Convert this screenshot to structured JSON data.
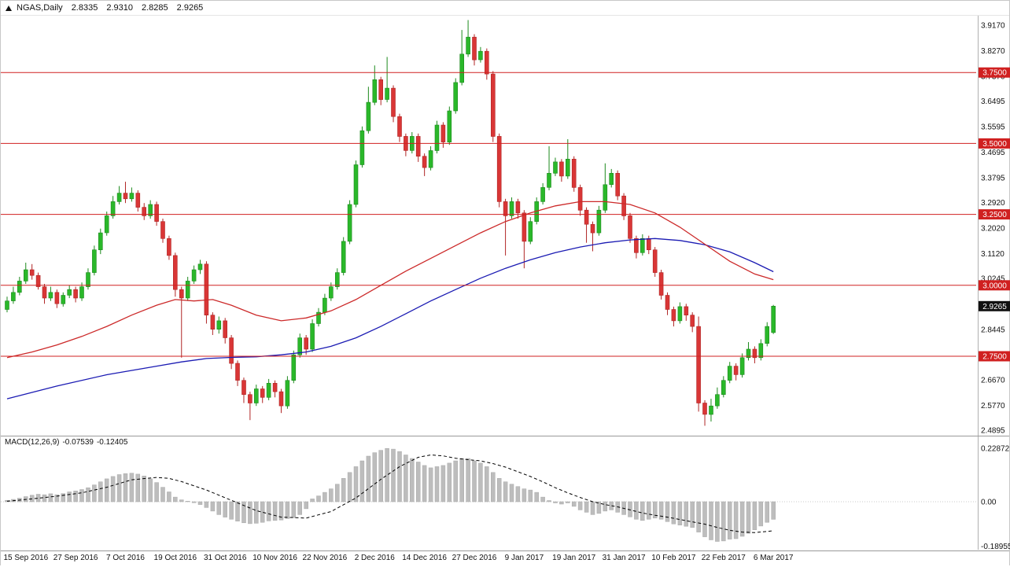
{
  "header": {
    "symbol": "NGAS,Daily",
    "open": "2.8335",
    "high": "2.9310",
    "low": "2.8285",
    "close": "2.9265"
  },
  "macd_panel": {
    "label": "MACD(12,26,9)",
    "macd_value": "-0.07539",
    "signal_value": "-0.12405"
  },
  "colors": {
    "bull": "#2ab82a",
    "bull_border": "#1d8a1d",
    "bear": "#d93636",
    "bear_border": "#b02525",
    "level_line": "#d02020",
    "ma_fast": "#cc2929",
    "ma_slow": "#1b1bb3",
    "histogram": "#bdbdbd",
    "histogram_border": "#a8a8a8",
    "signal": "#000000",
    "badge_current": "#111111"
  },
  "chart_data": {
    "type": "candlestick",
    "title": "NGAS Daily with MACD(12,26,9)",
    "price_axis": {
      "max": 3.917,
      "min": 2.4895,
      "ticks": [
        "3.9170",
        "3.8270",
        "3.7370",
        "3.6495",
        "3.5595",
        "3.4695",
        "3.3795",
        "3.2920",
        "3.2020",
        "3.1120",
        "3.0245",
        "2.9345",
        "2.8445",
        "2.7545",
        "2.6670",
        "2.5770",
        "2.4895"
      ]
    },
    "levels": [
      {
        "value": 3.75,
        "label": "3.7500"
      },
      {
        "value": 3.5,
        "label": "3.5000"
      },
      {
        "value": 3.25,
        "label": "3.2500"
      },
      {
        "value": 3.0,
        "label": "3.0000"
      },
      {
        "value": 2.75,
        "label": "2.7500"
      }
    ],
    "current_price": {
      "value": 2.9265,
      "label": "2.9265"
    },
    "x_labels": [
      {
        "bar": 3,
        "label": "15 Sep 2016"
      },
      {
        "bar": 11,
        "label": "27 Sep 2016"
      },
      {
        "bar": 19,
        "label": "7 Oct 2016"
      },
      {
        "bar": 27,
        "label": "19 Oct 2016"
      },
      {
        "bar": 35,
        "label": "31 Oct 2016"
      },
      {
        "bar": 43,
        "label": "10 Nov 2016"
      },
      {
        "bar": 51,
        "label": "22 Nov 2016"
      },
      {
        "bar": 59,
        "label": "2 Dec 2016"
      },
      {
        "bar": 67,
        "label": "14 Dec 2016"
      },
      {
        "bar": 75,
        "label": "27 Dec 2016"
      },
      {
        "bar": 83,
        "label": "9 Jan 2017"
      },
      {
        "bar": 91,
        "label": "19 Jan 2017"
      },
      {
        "bar": 99,
        "label": "31 Jan 2017"
      },
      {
        "bar": 107,
        "label": "10 Feb 2017"
      },
      {
        "bar": 115,
        "label": "22 Feb 2017"
      },
      {
        "bar": 123,
        "label": "6 Mar 2017"
      }
    ],
    "candles": [
      [
        2.915,
        2.96,
        2.905,
        2.945
      ],
      [
        2.945,
        2.995,
        2.935,
        2.975
      ],
      [
        2.975,
        3.03,
        2.965,
        3.015
      ],
      [
        3.015,
        3.08,
        3.005,
        3.055
      ],
      [
        3.055,
        3.075,
        3.02,
        3.035
      ],
      [
        3.035,
        3.045,
        2.985,
        2.995
      ],
      [
        2.995,
        3.005,
        2.935,
        2.955
      ],
      [
        2.955,
        2.995,
        2.945,
        2.975
      ],
      [
        2.975,
        2.985,
        2.92,
        2.935
      ],
      [
        2.935,
        2.975,
        2.925,
        2.965
      ],
      [
        2.965,
        3.0,
        2.955,
        2.985
      ],
      [
        2.985,
        2.995,
        2.94,
        2.955
      ],
      [
        2.955,
        3.01,
        2.945,
        2.995
      ],
      [
        2.995,
        3.06,
        2.985,
        3.045
      ],
      [
        3.045,
        3.14,
        3.035,
        3.125
      ],
      [
        3.125,
        3.2,
        3.11,
        3.185
      ],
      [
        3.185,
        3.26,
        3.175,
        3.245
      ],
      [
        3.245,
        3.315,
        3.235,
        3.295
      ],
      [
        3.295,
        3.35,
        3.285,
        3.325
      ],
      [
        3.325,
        3.365,
        3.29,
        3.305
      ],
      [
        3.305,
        3.345,
        3.295,
        3.325
      ],
      [
        3.325,
        3.335,
        3.26,
        3.275
      ],
      [
        3.275,
        3.29,
        3.23,
        3.245
      ],
      [
        3.245,
        3.3,
        3.235,
        3.285
      ],
      [
        3.285,
        3.295,
        3.21,
        3.225
      ],
      [
        3.225,
        3.235,
        3.15,
        3.165
      ],
      [
        3.165,
        3.175,
        3.09,
        3.105
      ],
      [
        3.105,
        3.115,
        2.96,
        2.985
      ],
      [
        2.985,
        2.995,
        2.745,
        2.955
      ],
      [
        2.955,
        3.03,
        2.945,
        3.015
      ],
      [
        3.015,
        3.07,
        3.005,
        3.055
      ],
      [
        3.055,
        3.09,
        3.04,
        3.075
      ],
      [
        3.075,
        3.085,
        2.865,
        2.895
      ],
      [
        2.895,
        2.905,
        2.825,
        2.845
      ],
      [
        2.845,
        2.89,
        2.83,
        2.875
      ],
      [
        2.875,
        2.885,
        2.795,
        2.815
      ],
      [
        2.815,
        2.825,
        2.705,
        2.725
      ],
      [
        2.725,
        2.735,
        2.645,
        2.665
      ],
      [
        2.665,
        2.675,
        2.585,
        2.615
      ],
      [
        2.615,
        2.625,
        2.525,
        2.585
      ],
      [
        2.585,
        2.65,
        2.575,
        2.635
      ],
      [
        2.635,
        2.645,
        2.585,
        2.605
      ],
      [
        2.605,
        2.67,
        2.595,
        2.655
      ],
      [
        2.655,
        2.665,
        2.605,
        2.625
      ],
      [
        2.625,
        2.635,
        2.55,
        2.575
      ],
      [
        2.575,
        2.68,
        2.565,
        2.665
      ],
      [
        2.665,
        2.77,
        2.655,
        2.755
      ],
      [
        2.755,
        2.83,
        2.745,
        2.815
      ],
      [
        2.815,
        2.825,
        2.755,
        2.775
      ],
      [
        2.775,
        2.88,
        2.765,
        2.865
      ],
      [
        2.865,
        2.92,
        2.855,
        2.905
      ],
      [
        2.905,
        2.97,
        2.895,
        2.955
      ],
      [
        2.955,
        3.01,
        2.945,
        2.995
      ],
      [
        2.995,
        3.06,
        2.985,
        3.045
      ],
      [
        3.045,
        3.17,
        3.035,
        3.155
      ],
      [
        3.155,
        3.3,
        3.145,
        3.285
      ],
      [
        3.285,
        3.44,
        3.275,
        3.425
      ],
      [
        3.425,
        3.56,
        3.415,
        3.545
      ],
      [
        3.545,
        3.7,
        3.535,
        3.645
      ],
      [
        3.645,
        3.775,
        3.635,
        3.725
      ],
      [
        3.725,
        3.735,
        3.635,
        3.655
      ],
      [
        3.655,
        3.805,
        3.645,
        3.695
      ],
      [
        3.695,
        3.705,
        3.575,
        3.595
      ],
      [
        3.595,
        3.605,
        3.505,
        3.525
      ],
      [
        3.525,
        3.535,
        3.455,
        3.475
      ],
      [
        3.475,
        3.54,
        3.465,
        3.525
      ],
      [
        3.525,
        3.535,
        3.435,
        3.455
      ],
      [
        3.455,
        3.465,
        3.385,
        3.415
      ],
      [
        3.415,
        3.49,
        3.405,
        3.475
      ],
      [
        3.475,
        3.58,
        3.465,
        3.565
      ],
      [
        3.565,
        3.575,
        3.485,
        3.505
      ],
      [
        3.505,
        3.63,
        3.495,
        3.615
      ],
      [
        3.615,
        3.73,
        3.605,
        3.715
      ],
      [
        3.715,
        3.9,
        3.705,
        3.815
      ],
      [
        3.815,
        3.935,
        3.805,
        3.875
      ],
      [
        3.875,
        3.885,
        3.775,
        3.795
      ],
      [
        3.795,
        3.84,
        3.785,
        3.825
      ],
      [
        3.825,
        3.835,
        3.725,
        3.745
      ],
      [
        3.745,
        3.755,
        3.505,
        3.525
      ],
      [
        3.525,
        3.535,
        3.275,
        3.295
      ],
      [
        3.295,
        3.305,
        3.105,
        3.245
      ],
      [
        3.245,
        3.31,
        3.235,
        3.295
      ],
      [
        3.295,
        3.305,
        3.235,
        3.255
      ],
      [
        3.255,
        3.265,
        3.06,
        3.155
      ],
      [
        3.155,
        3.24,
        3.145,
        3.225
      ],
      [
        3.225,
        3.31,
        3.215,
        3.295
      ],
      [
        3.295,
        3.36,
        3.285,
        3.345
      ],
      [
        3.345,
        3.49,
        3.335,
        3.395
      ],
      [
        3.395,
        3.45,
        3.385,
        3.435
      ],
      [
        3.435,
        3.445,
        3.365,
        3.385
      ],
      [
        3.385,
        3.515,
        3.375,
        3.445
      ],
      [
        3.445,
        3.455,
        3.33,
        3.345
      ],
      [
        3.345,
        3.355,
        3.245,
        3.265
      ],
      [
        3.265,
        3.275,
        3.15,
        3.215
      ],
      [
        3.215,
        3.225,
        3.12,
        3.185
      ],
      [
        3.185,
        3.28,
        3.175,
        3.265
      ],
      [
        3.265,
        3.43,
        3.255,
        3.355
      ],
      [
        3.355,
        3.41,
        3.345,
        3.395
      ],
      [
        3.395,
        3.405,
        3.3,
        3.315
      ],
      [
        3.315,
        3.325,
        3.23,
        3.245
      ],
      [
        3.245,
        3.255,
        3.15,
        3.165
      ],
      [
        3.165,
        3.175,
        3.095,
        3.115
      ],
      [
        3.115,
        3.18,
        3.105,
        3.165
      ],
      [
        3.165,
        3.175,
        3.11,
        3.125
      ],
      [
        3.125,
        3.135,
        3.03,
        3.045
      ],
      [
        3.045,
        3.055,
        2.95,
        2.965
      ],
      [
        2.965,
        2.975,
        2.895,
        2.915
      ],
      [
        2.915,
        2.925,
        2.855,
        2.875
      ],
      [
        2.875,
        2.94,
        2.865,
        2.925
      ],
      [
        2.925,
        2.935,
        2.875,
        2.895
      ],
      [
        2.895,
        2.905,
        2.835,
        2.855
      ],
      [
        2.855,
        2.89,
        2.555,
        2.585
      ],
      [
        2.585,
        2.595,
        2.505,
        2.545
      ],
      [
        2.545,
        2.6,
        2.52,
        2.575
      ],
      [
        2.575,
        2.64,
        2.565,
        2.615
      ],
      [
        2.615,
        2.68,
        2.605,
        2.665
      ],
      [
        2.665,
        2.73,
        2.655,
        2.715
      ],
      [
        2.715,
        2.725,
        2.665,
        2.685
      ],
      [
        2.685,
        2.76,
        2.675,
        2.745
      ],
      [
        2.745,
        2.8,
        2.735,
        2.775
      ],
      [
        2.775,
        2.785,
        2.725,
        2.745
      ],
      [
        2.745,
        2.81,
        2.735,
        2.795
      ],
      [
        2.795,
        2.87,
        2.785,
        2.855
      ],
      [
        2.8335,
        2.931,
        2.8285,
        2.9265
      ]
    ],
    "ma_fast_points": [
      [
        0,
        2.745
      ],
      [
        4,
        2.765
      ],
      [
        8,
        2.79
      ],
      [
        12,
        2.82
      ],
      [
        16,
        2.855
      ],
      [
        20,
        2.895
      ],
      [
        24,
        2.93
      ],
      [
        27,
        2.95
      ],
      [
        30,
        2.945
      ],
      [
        33,
        2.95
      ],
      [
        36,
        2.93
      ],
      [
        40,
        2.895
      ],
      [
        44,
        2.875
      ],
      [
        48,
        2.885
      ],
      [
        52,
        2.91
      ],
      [
        56,
        2.95
      ],
      [
        60,
        3.0
      ],
      [
        64,
        3.05
      ],
      [
        68,
        3.095
      ],
      [
        72,
        3.14
      ],
      [
        76,
        3.185
      ],
      [
        80,
        3.225
      ],
      [
        84,
        3.255
      ],
      [
        88,
        3.28
      ],
      [
        92,
        3.295
      ],
      [
        96,
        3.295
      ],
      [
        100,
        3.285
      ],
      [
        104,
        3.255
      ],
      [
        108,
        3.205
      ],
      [
        112,
        3.145
      ],
      [
        116,
        3.085
      ],
      [
        120,
        3.04
      ],
      [
        123,
        3.02
      ]
    ],
    "ma_slow_points": [
      [
        0,
        2.6
      ],
      [
        8,
        2.645
      ],
      [
        16,
        2.685
      ],
      [
        24,
        2.715
      ],
      [
        28,
        2.73
      ],
      [
        32,
        2.742
      ],
      [
        36,
        2.746
      ],
      [
        40,
        2.748
      ],
      [
        44,
        2.755
      ],
      [
        48,
        2.765
      ],
      [
        52,
        2.785
      ],
      [
        56,
        2.815
      ],
      [
        60,
        2.855
      ],
      [
        64,
        2.9
      ],
      [
        68,
        2.945
      ],
      [
        72,
        2.985
      ],
      [
        76,
        3.025
      ],
      [
        80,
        3.06
      ],
      [
        84,
        3.09
      ],
      [
        88,
        3.115
      ],
      [
        92,
        3.135
      ],
      [
        96,
        3.15
      ],
      [
        100,
        3.16
      ],
      [
        104,
        3.165
      ],
      [
        108,
        3.158
      ],
      [
        112,
        3.143
      ],
      [
        116,
        3.118
      ],
      [
        120,
        3.08
      ],
      [
        123,
        3.048
      ]
    ],
    "macd": {
      "axis_labels": [
        {
          "value": 0.22872,
          "label": "0.22872"
        },
        {
          "value": 0,
          "label": "0.00"
        },
        {
          "value": -0.18955,
          "label": "-0.18955"
        }
      ],
      "histogram": [
        0.006,
        0.01,
        0.015,
        0.022,
        0.028,
        0.032,
        0.03,
        0.034,
        0.03,
        0.035,
        0.042,
        0.046,
        0.052,
        0.06,
        0.072,
        0.085,
        0.098,
        0.108,
        0.116,
        0.12,
        0.122,
        0.118,
        0.11,
        0.098,
        0.082,
        0.062,
        0.042,
        0.02,
        0.008,
        0.002,
        -0.004,
        -0.012,
        -0.025,
        -0.04,
        -0.055,
        -0.066,
        -0.075,
        -0.083,
        -0.09,
        -0.094,
        -0.092,
        -0.088,
        -0.082,
        -0.08,
        -0.078,
        -0.072,
        -0.068,
        -0.055,
        -0.03,
        0.012,
        0.025,
        0.04,
        0.055,
        0.075,
        0.1,
        0.125,
        0.15,
        0.175,
        0.195,
        0.21,
        0.22,
        0.228,
        0.225,
        0.215,
        0.2,
        0.185,
        0.17,
        0.155,
        0.145,
        0.15,
        0.155,
        0.165,
        0.175,
        0.185,
        0.185,
        0.175,
        0.165,
        0.15,
        0.125,
        0.1,
        0.085,
        0.075,
        0.065,
        0.055,
        0.05,
        0.04,
        0.02,
        0.005,
        -0.005,
        -0.01,
        -0.005,
        -0.02,
        -0.035,
        -0.045,
        -0.055,
        -0.05,
        -0.04,
        -0.035,
        -0.045,
        -0.055,
        -0.065,
        -0.075,
        -0.08,
        -0.075,
        -0.07,
        -0.075,
        -0.085,
        -0.095,
        -0.1,
        -0.105,
        -0.11,
        -0.13,
        -0.15,
        -0.163,
        -0.17,
        -0.168,
        -0.16,
        -0.158,
        -0.148,
        -0.135,
        -0.12,
        -0.104,
        -0.088,
        -0.07539
      ],
      "signal_points": [
        [
          0,
          0.002
        ],
        [
          4,
          0.012
        ],
        [
          8,
          0.024
        ],
        [
          12,
          0.038
        ],
        [
          16,
          0.062
        ],
        [
          20,
          0.094
        ],
        [
          24,
          0.104
        ],
        [
          26,
          0.1
        ],
        [
          28,
          0.086
        ],
        [
          32,
          0.05
        ],
        [
          36,
          0.006
        ],
        [
          40,
          -0.038
        ],
        [
          44,
          -0.066
        ],
        [
          48,
          -0.07
        ],
        [
          52,
          -0.042
        ],
        [
          56,
          0.016
        ],
        [
          60,
          0.096
        ],
        [
          63,
          0.15
        ],
        [
          66,
          0.19
        ],
        [
          68,
          0.2
        ],
        [
          70,
          0.196
        ],
        [
          72,
          0.186
        ],
        [
          74,
          0.18
        ],
        [
          76,
          0.175
        ],
        [
          78,
          0.163
        ],
        [
          80,
          0.148
        ],
        [
          82,
          0.128
        ],
        [
          84,
          0.108
        ],
        [
          86,
          0.085
        ],
        [
          88,
          0.06
        ],
        [
          90,
          0.038
        ],
        [
          92,
          0.018
        ],
        [
          94,
          0.0
        ],
        [
          96,
          -0.012
        ],
        [
          98,
          -0.022
        ],
        [
          100,
          -0.035
        ],
        [
          102,
          -0.048
        ],
        [
          104,
          -0.058
        ],
        [
          106,
          -0.066
        ],
        [
          108,
          -0.076
        ],
        [
          110,
          -0.086
        ],
        [
          112,
          -0.096
        ],
        [
          114,
          -0.11
        ],
        [
          116,
          -0.122
        ],
        [
          118,
          -0.13
        ],
        [
          120,
          -0.132
        ],
        [
          122,
          -0.127
        ],
        [
          123,
          -0.12405
        ]
      ]
    }
  }
}
